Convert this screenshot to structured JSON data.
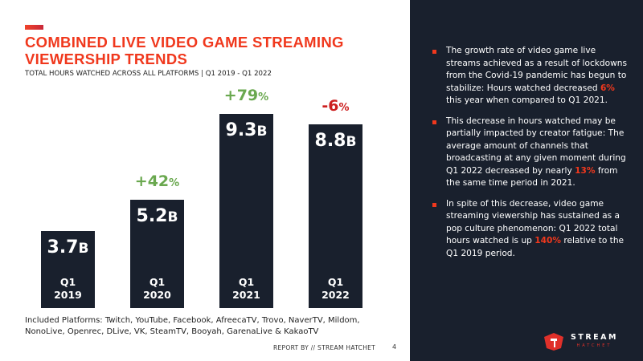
{
  "header": {
    "title_line1": "COMBINED LIVE VIDEO GAME STREAMING",
    "title_line2": "VIEWERSHIP TRENDS",
    "subtitle": "TOTAL HOURS WATCHED ACROSS ALL PLATFORMS | Q1 2019 - Q1 2022"
  },
  "chart_data": {
    "type": "bar",
    "title": "COMBINED LIVE VIDEO GAME STREAMING VIEWERSHIP TRENDS",
    "subtitle": "TOTAL HOURS WATCHED ACROSS ALL PLATFORMS | Q1 2019 - Q1 2022",
    "categories": [
      [
        "Q1",
        "2019"
      ],
      [
        "Q1",
        "2020"
      ],
      [
        "Q1",
        "2021"
      ],
      [
        "Q1",
        "2022"
      ]
    ],
    "values": [
      3.7,
      5.2,
      9.3,
      8.8
    ],
    "value_labels": [
      "3.7",
      "5.2",
      "9.3",
      "8.8"
    ],
    "unit": "B",
    "changes": [
      null,
      {
        "num": "+42",
        "sign": "%"
      },
      {
        "num": "+79",
        "sign": "%"
      },
      {
        "num": "-6",
        "sign": "%"
      }
    ],
    "change_colors": {
      "positive": "#6aa84f",
      "negative": "#cc1f1f"
    },
    "bar_color": "#19202d",
    "ylim": [
      0,
      9.3
    ]
  },
  "platforms": "Included Platforms: Twitch, YouTube, Facebook, AfreecaTV, Trovo, NaverTV, Mildom, NonoLive, Openrec, DLive, VK, SteamTV, Booyah, GarenaLive & KakaoTV",
  "footer": {
    "report": "REPORT BY // STREAM HATCHET",
    "page": "4"
  },
  "bullets": [
    {
      "pre": "The growth rate of video game live streams achieved as a result of lockdowns from the Covid-19 pandemic has begun to stabilize: Hours watched decreased ",
      "hl": "6%",
      "post": " this year when compared to Q1 2021."
    },
    {
      "pre": "This decrease in hours watched may be partially impacted by creator fatigue: The average amount of channels that broadcasting at any given moment during Q1 2022 decreased by nearly ",
      "hl": "13%",
      "post": " from the same time period in 2021."
    },
    {
      "pre": "In spite of this decrease, video game streaming viewership has sustained as a pop culture phenomenon: Q1 2022 total hours watched is up ",
      "hl": "140%",
      "post": " relative to the Q1 2019 period."
    }
  ],
  "logo": {
    "name": "STREAM",
    "sub": "HATCHET"
  }
}
